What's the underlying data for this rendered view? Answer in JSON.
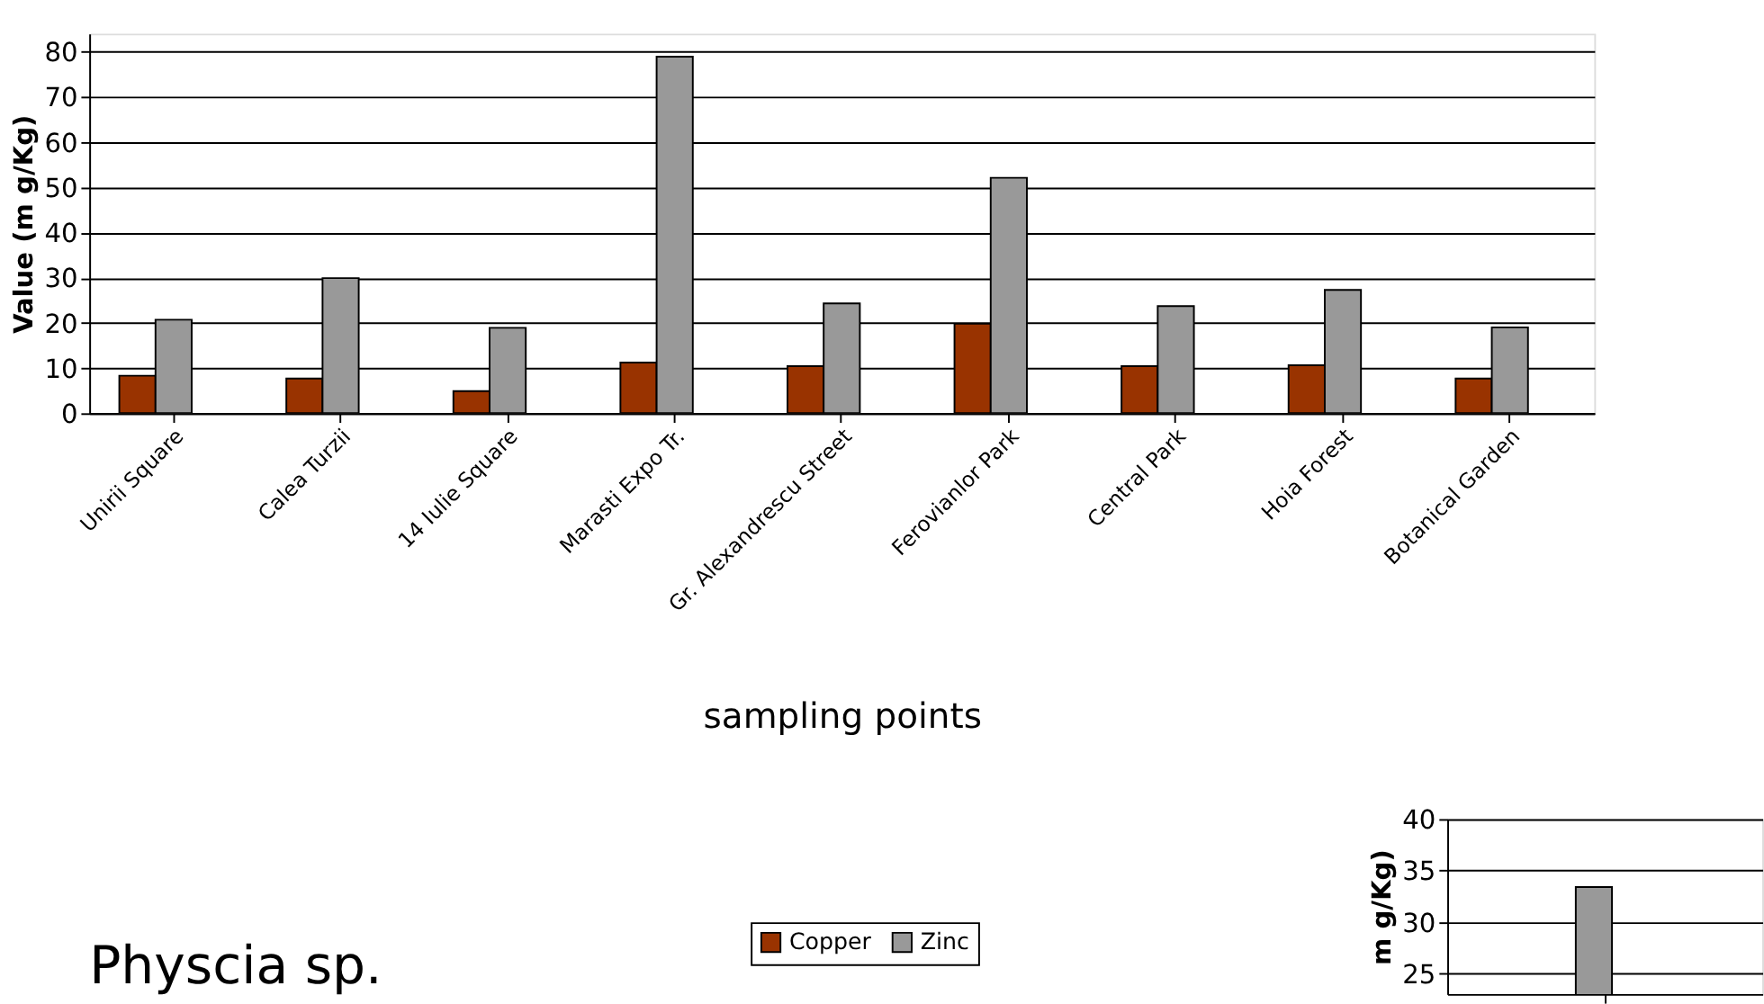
{
  "chart_data": [
    {
      "type": "bar",
      "xlabel": "sampling points",
      "ylabel": "Value (m g/Kg)",
      "categories": [
        "Unirii Square",
        "Calea Turzii",
        "14 Iulie Square",
        "Marasti Expo Tr.",
        "Gr. Alexandrescu Street",
        "Ferovianlor Park",
        "Central Park",
        "Hoia Forest",
        "Botanical Garden"
      ],
      "series": [
        {
          "name": "Copper",
          "color": "#993300",
          "values": [
            8.3,
            7.7,
            4.9,
            11.2,
            10.4,
            19.8,
            10.4,
            10.6,
            7.7
          ]
        },
        {
          "name": "Zinc",
          "color": "#999999",
          "values": [
            20.7,
            29.9,
            18.9,
            78.9,
            24.3,
            52.1,
            23.7,
            27.3,
            19.0
          ]
        }
      ],
      "ylim": [
        0,
        84
      ],
      "yticks": [
        0,
        10,
        20,
        30,
        40,
        50,
        60,
        70,
        80
      ],
      "grid": "y",
      "legend": "bottom",
      "annotations": [
        "Physcia sp."
      ]
    },
    {
      "type": "bar",
      "ylabel": "m g/Kg)",
      "categories": [
        null
      ],
      "series": [
        {
          "color": "#999999",
          "values": [
            33.4
          ]
        }
      ],
      "ylim": [
        23,
        40
      ],
      "yticks": [
        25,
        30,
        35,
        40
      ],
      "grid": "y"
    }
  ]
}
